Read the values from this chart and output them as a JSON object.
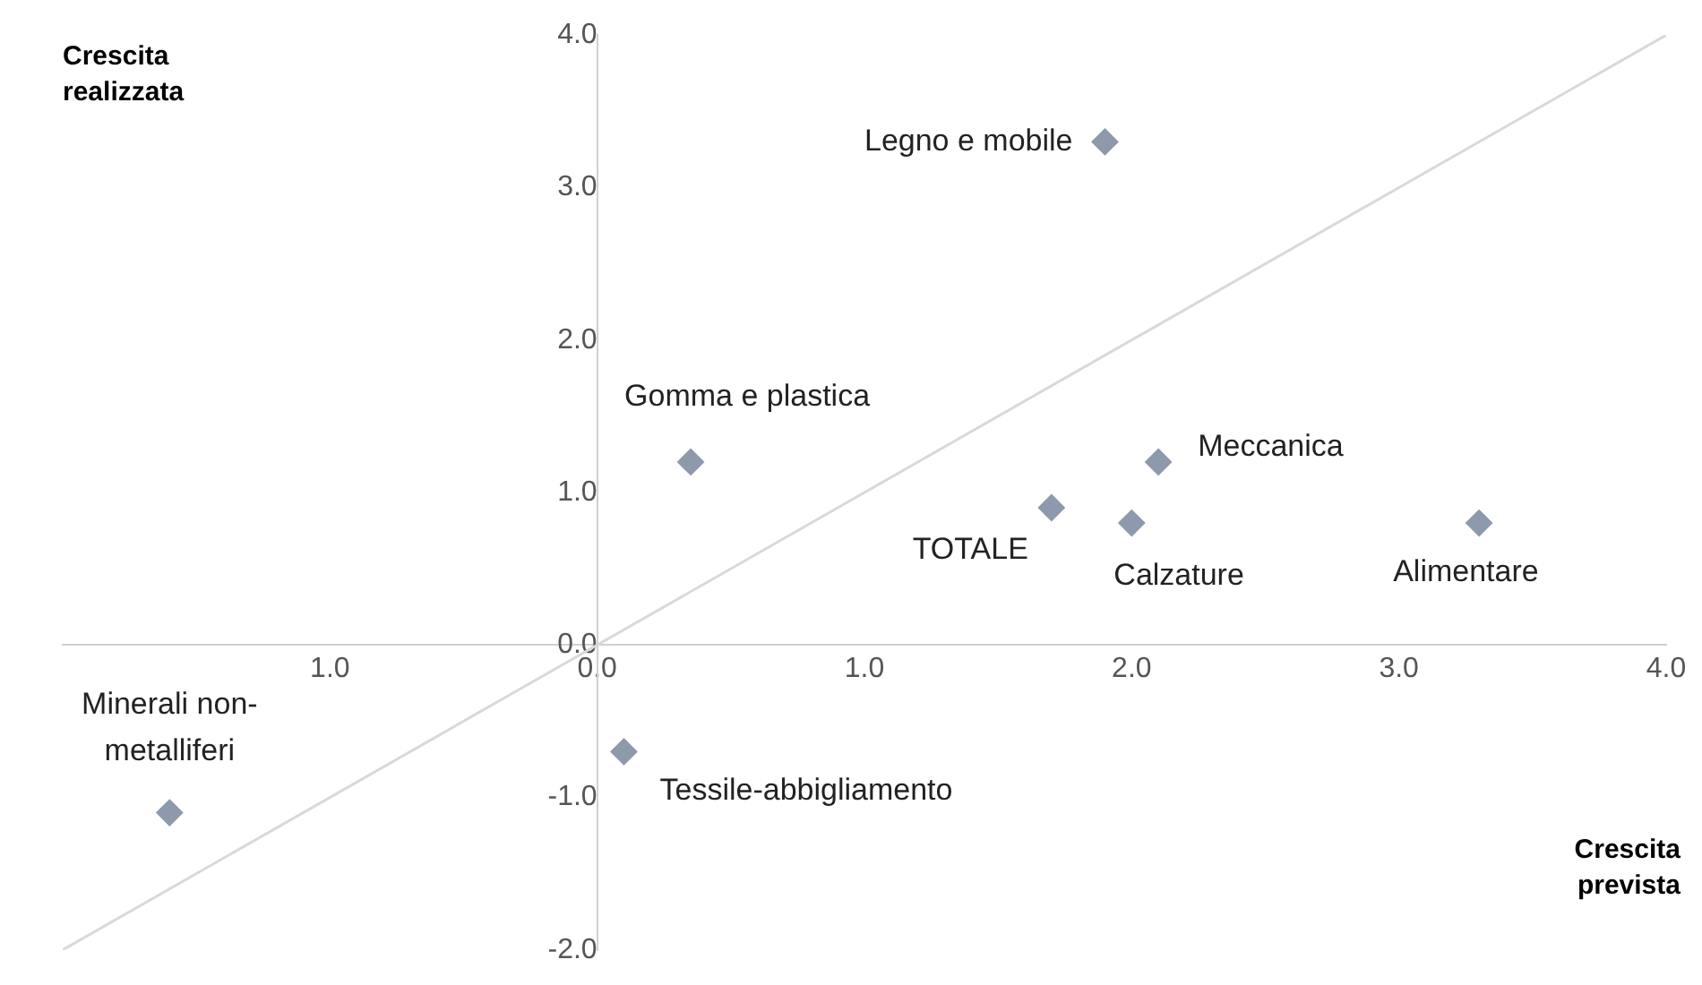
{
  "chart_data": {
    "type": "scatter",
    "xlabel": "Crescita prevista",
    "ylabel": "Crescita realizzata",
    "marker": "diamond",
    "grid": false,
    "legend": false,
    "series": [
      {
        "x": [
          1.9,
          0.35,
          2.1,
          1.7,
          2.0,
          3.3,
          -1.6,
          0.1
        ],
        "values": [
          3.3,
          1.2,
          1.2,
          0.9,
          0.8,
          0.8,
          -1.1,
          -0.7
        ],
        "color": "#8e9aab"
      },
      {
        "type": "line",
        "x": [
          -2,
          4
        ],
        "values": [
          -2,
          4
        ],
        "color": "#d9d9d9",
        "marker": "none"
      }
    ],
    "xlim": [
      -2,
      4
    ],
    "ylim": [
      -2,
      4
    ],
    "xticks": [
      {
        "value": -1,
        "label": "1.0"
      },
      {
        "value": 0,
        "label": "0.0"
      },
      {
        "value": 1,
        "label": "1.0"
      },
      {
        "value": 2,
        "label": "2.0"
      },
      {
        "value": 3,
        "label": "3.0"
      },
      {
        "value": 4,
        "label": "4.0"
      }
    ],
    "yticks": [
      {
        "value": -2,
        "label": "-2.0"
      },
      {
        "value": -1,
        "label": "-1.0"
      },
      {
        "value": 0,
        "label": "0.0"
      },
      {
        "value": 1,
        "label": "1.0"
      },
      {
        "value": 2,
        "label": "2.0"
      },
      {
        "value": 3,
        "label": "3.0"
      },
      {
        "value": 4,
        "label": "4.0"
      }
    ],
    "annotations": [
      {
        "text": "Legno e mobile",
        "x": 1.9,
        "y": 3.3
      },
      {
        "text": "Gomma e plastica",
        "x": 0.35,
        "y": 1.2
      },
      {
        "text": "Meccanica",
        "x": 2.1,
        "y": 1.2
      },
      {
        "text": "TOTALE",
        "x": 1.7,
        "y": 0.9
      },
      {
        "text": "Calzature",
        "x": 2.0,
        "y": 0.8
      },
      {
        "text": "Alimentare",
        "x": 3.3,
        "y": 0.8
      },
      {
        "text": "Minerali non-\nmetalliferi",
        "x": -1.6,
        "y": -1.1
      },
      {
        "text": "Tessile-abbigliamento",
        "x": 0.1,
        "y": -0.7
      }
    ]
  }
}
